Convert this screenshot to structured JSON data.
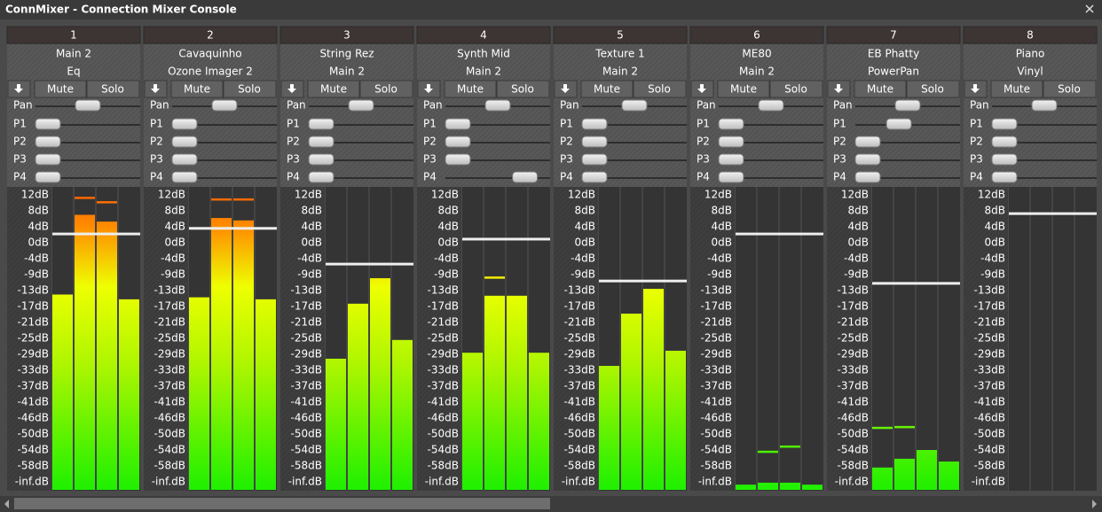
{
  "window": {
    "title": "ConnMixer - Connection Mixer Console"
  },
  "labels": {
    "mute": "Mute",
    "solo": "Solo",
    "sliders": [
      "Pan",
      "P1",
      "P2",
      "P3",
      "P4"
    ]
  },
  "scale": [
    {
      "value": 12,
      "label": "12dB"
    },
    {
      "value": 8,
      "label": "8dB"
    },
    {
      "value": 4,
      "label": "4dB"
    },
    {
      "value": 0,
      "label": "0dB"
    },
    {
      "value": -4,
      "label": "-4dB"
    },
    {
      "value": -9,
      "label": "-9dB"
    },
    {
      "value": -13,
      "label": "-13dB"
    },
    {
      "value": -17,
      "label": "-17dB"
    },
    {
      "value": -21,
      "label": "-21dB"
    },
    {
      "value": -25,
      "label": "-25dB"
    },
    {
      "value": -29,
      "label": "-29dB"
    },
    {
      "value": -33,
      "label": "-33dB"
    },
    {
      "value": -37,
      "label": "-37dB"
    },
    {
      "value": -41,
      "label": "-41dB"
    },
    {
      "value": -46,
      "label": "-46dB"
    },
    {
      "value": -50,
      "label": "-50dB"
    },
    {
      "value": -54,
      "label": "-54dB"
    },
    {
      "value": -58,
      "label": "-58dB"
    },
    {
      "value": null,
      "label": "-inf.dB"
    }
  ],
  "channels": [
    {
      "number": 1,
      "name": "Main 2",
      "output": "Eq",
      "sliders": [
        0.5,
        0,
        0,
        0,
        0
      ],
      "levels": [
        -14,
        7,
        5.3,
        -15.2
      ],
      "peaks": [
        null,
        11.3,
        10.2,
        null
      ],
      "fader": 2.2
    },
    {
      "number": 2,
      "name": "Cavaquinho",
      "output": "Ozone Imager 2",
      "sliders": [
        0.5,
        0,
        0,
        0,
        0
      ],
      "levels": [
        -14.7,
        6.2,
        5.6,
        -15.2
      ],
      "peaks": [
        null,
        10.9,
        10.9,
        null
      ],
      "fader": 3.6
    },
    {
      "number": 3,
      "name": "String Rez",
      "output": "Main 2",
      "sliders": [
        0.5,
        0,
        0,
        0,
        0
      ],
      "levels": [
        -30.1,
        -16.3,
        -9.9,
        -25.4
      ],
      "peaks": [
        null,
        null,
        null,
        null
      ],
      "fader": -5.7
    },
    {
      "number": 4,
      "name": "Synth Mid",
      "output": "Main 2",
      "sliders": [
        0.5,
        0,
        0,
        0,
        0.84
      ],
      "levels": [
        -28.6,
        -14.3,
        -14.3,
        -28.6
      ],
      "peaks": [
        null,
        -9.7,
        null,
        null
      ],
      "fader": 0.9
    },
    {
      "number": 5,
      "name": "Texture 1",
      "output": "Main 2",
      "sliders": [
        0.5,
        0,
        0,
        0,
        0
      ],
      "levels": [
        -31.9,
        -18.8,
        -13,
        -28.1
      ],
      "peaks": [
        null,
        null,
        -12.8,
        null
      ],
      "fader": -10.6
    },
    {
      "number": 6,
      "name": "ME80",
      "output": "Main 2",
      "sliders": [
        0.5,
        0,
        0,
        0,
        0
      ],
      "levels": [
        -62.7,
        -62.2,
        -62.2,
        -62.7
      ],
      "peaks": [
        null,
        -54.4,
        -53.1,
        null
      ],
      "fader": 2.2
    },
    {
      "number": 7,
      "name": "EB Phatty",
      "output": "PowerPan",
      "sliders": [
        0.5,
        0.39,
        0,
        0,
        0
      ],
      "levels": [
        -58.4,
        -56.2,
        -54,
        -56.9
      ],
      "peaks": [
        -48.4,
        -48.2,
        null,
        null
      ],
      "fader": -11.2
    },
    {
      "number": 8,
      "name": "Piano",
      "output": "Vinyl",
      "sliders": [
        0.5,
        0,
        0,
        0,
        0
      ],
      "levels": [
        null,
        null,
        null,
        null
      ],
      "peaks": [
        null,
        null,
        null,
        null
      ],
      "fader": 7.3
    }
  ]
}
